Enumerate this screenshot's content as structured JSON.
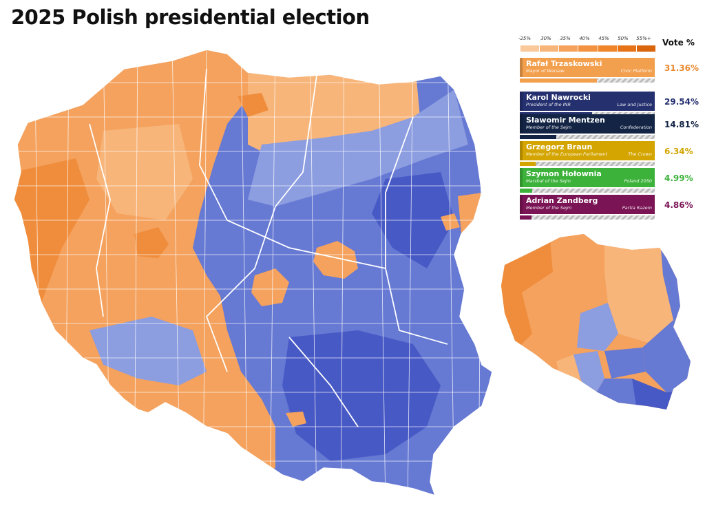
{
  "title": "2025 Polish presidential election",
  "legend": {
    "header": "Vote %",
    "scale_labels": [
      "-25%",
      "30%",
      "35%",
      "40%",
      "45%",
      "50%",
      "55%+"
    ],
    "orange_scale": [
      "#f9c99a",
      "#f7b579",
      "#f5a25c",
      "#f39240",
      "#ef8428",
      "#e67317",
      "#d9650c"
    ],
    "blue_scale": [
      "#a6b4e6",
      "#8b9cdf",
      "#7285d6",
      "#5c70cf",
      "#4c5ec6",
      "#3d4db9",
      "#2e3ca8"
    ]
  },
  "candidates": [
    {
      "name": "Rafał Trzaskowski",
      "role": "Mayor of Warsaw",
      "party": "Civic Platform",
      "pct": "31.36%",
      "share": 0.3136,
      "color": "#f3a04e",
      "text_color": "#ffffff",
      "pct_color": "#e88a2f"
    },
    {
      "name": "Karol Nawrocki",
      "role": "President of the INR",
      "party": "Law and Justice",
      "pct": "29.54%",
      "share": 0.2954,
      "color": "#25306f",
      "text_color": "#ffffff",
      "pct_color": "#25306f"
    },
    {
      "name": "Sławomir Mentzen",
      "role": "Member of the Sejm",
      "party": "Confederation",
      "pct": "14.81%",
      "share": 0.1481,
      "color": "#132445",
      "text_color": "#ffffff",
      "pct_color": "#132445"
    },
    {
      "name": "Grzegorz Braun",
      "role": "Member of the European Parliament",
      "party": "The Crown",
      "pct": "6.34%",
      "share": 0.0634,
      "color": "#d4a500",
      "text_color": "#ffffff",
      "pct_color": "#d4a500"
    },
    {
      "name": "Szymon Hołownia",
      "role": "Marshal of the Sejm",
      "party": "Poland 2050",
      "pct": "4.99%",
      "share": 0.0499,
      "color": "#3db23b",
      "text_color": "#ffffff",
      "pct_color": "#3db23b"
    },
    {
      "name": "Adrian Zandberg",
      "role": "Member of the Sejm",
      "party": "Partia Razem",
      "pct": "4.86%",
      "share": 0.0486,
      "color": "#7a1455",
      "text_color": "#ffffff",
      "pct_color": "#7a1455"
    }
  ],
  "map_colors": {
    "orange_light": "#f7b57a",
    "orange": "#f4a25e",
    "orange_dark": "#ef8d3c",
    "blue_light": "#8c9de0",
    "blue": "#6679d3",
    "blue_dark": "#4759c5",
    "border": "#ffffff"
  }
}
